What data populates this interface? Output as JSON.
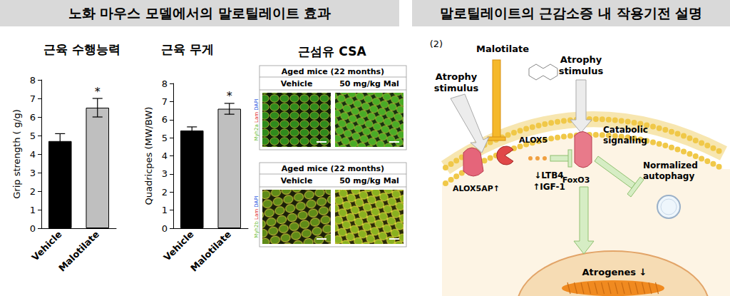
{
  "header": {
    "left": "노화 마우스 모델에서의 말로틸레이트 효과",
    "right": "말로틸레이트의 근감소증 내 작용기전 설명"
  },
  "chart_data": [
    {
      "type": "bar",
      "title": "근육 수행능력",
      "categories": [
        "Vehicle",
        "Malotilate"
      ],
      "values": [
        4.7,
        6.5
      ],
      "errors": [
        0.4,
        0.5
      ],
      "colors": [
        "#000000",
        "#bfbfbf"
      ],
      "ylabel": "Grip strength ( g/g)",
      "ylim": [
        0,
        8
      ],
      "yticks": [
        0,
        1,
        2,
        3,
        4,
        5,
        6,
        7,
        8
      ],
      "grid": false,
      "annotations": [
        {
          "category": "Malotilate",
          "text": "*"
        }
      ]
    },
    {
      "type": "bar",
      "title": "근육 무게",
      "categories": [
        "Vehicle",
        "Malotilate"
      ],
      "values": [
        5.4,
        6.6
      ],
      "errors": [
        0.2,
        0.3
      ],
      "colors": [
        "#000000",
        "#bfbfbf"
      ],
      "ylabel": "Quadricpes (MW/BW)",
      "ylim": [
        0,
        8
      ],
      "yticks": [
        0,
        1,
        2,
        3,
        4,
        5,
        6,
        7,
        8
      ],
      "grid": false,
      "annotations": [
        {
          "category": "Malotilate",
          "text": "*"
        }
      ]
    }
  ],
  "micrographs": {
    "title": "근섬유 CSA",
    "panels": [
      {
        "heading": "Aged mice (22 months)",
        "columns": [
          "Vehicle",
          "50 mg/kg Mal"
        ],
        "stain": [
          {
            "text": "Myh2a",
            "color": "#5fb82a"
          },
          {
            "text": "Lam",
            "color": "#e02020"
          },
          {
            "text": "DAPI",
            "color": "#2050e0"
          }
        ]
      },
      {
        "heading": "Aged mice (22 months)",
        "columns": [
          "Vehicle",
          "50 mg/kg Mal"
        ],
        "stain": [
          {
            "text": "Myh2b",
            "color": "#5fb82a"
          },
          {
            "text": "Lam",
            "color": "#e02020"
          },
          {
            "text": "DAPI",
            "color": "#2050e0"
          }
        ]
      }
    ]
  },
  "mechanism": {
    "panel_label": "(2)",
    "drug": "Malotilate",
    "stimulus_left": "Atrophy stimulus",
    "stimulus_right": "Atrophy stimulus",
    "alox5": "ALOX5",
    "alox5ap": "ALOX5AP↑",
    "mediators": [
      "↓LTB4",
      "↑IGF-1"
    ],
    "foxo3": "FoxO3",
    "catabolic": "Catabolic signaling",
    "autophagy": "Normalized autophagy",
    "atrogenes": "Atrogenes ↓"
  }
}
